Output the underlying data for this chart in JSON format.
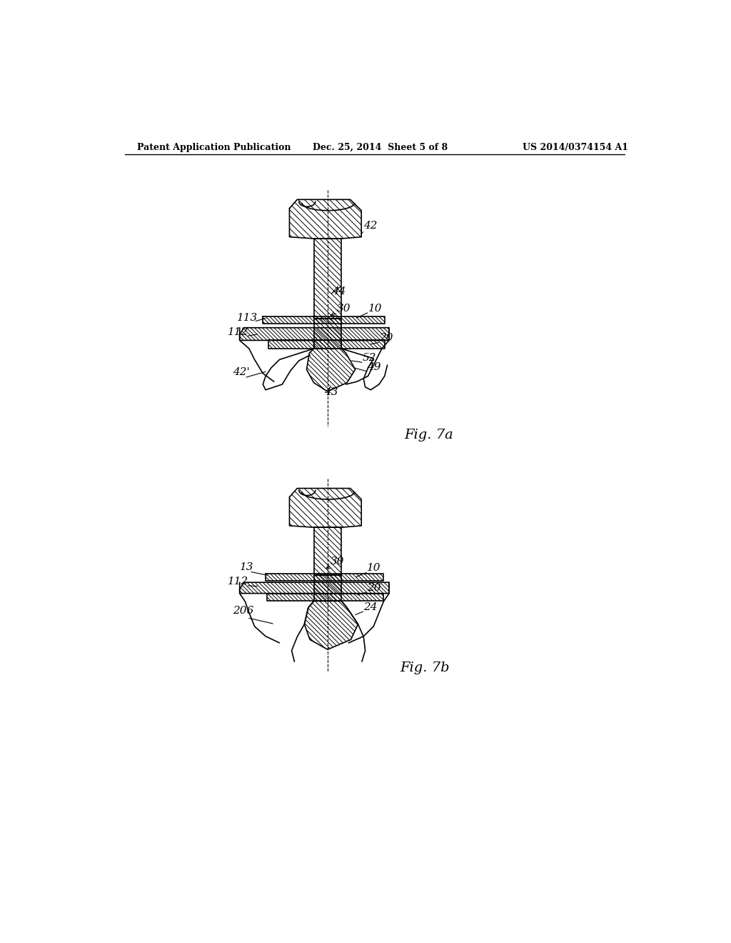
{
  "background_color": "#ffffff",
  "header_left": "Patent Application Publication",
  "header_center": "Dec. 25, 2014  Sheet 5 of 8",
  "header_right": "US 2014/0374154 A1",
  "fig7a_label": "Fig. 7a",
  "fig7b_label": "Fig. 7b"
}
